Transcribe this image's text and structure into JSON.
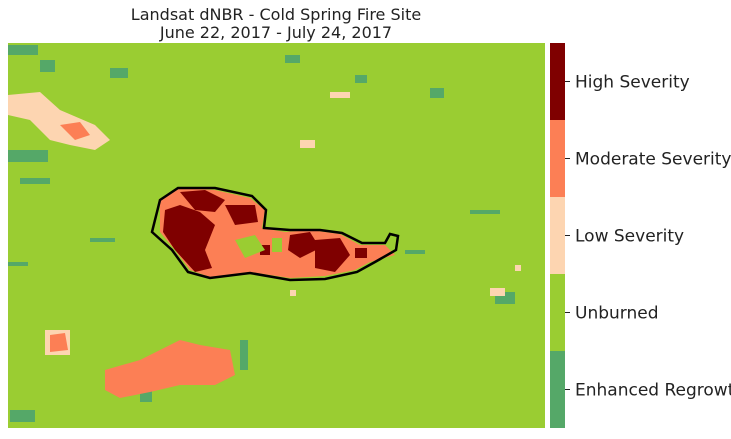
{
  "map": {
    "title": [
      "Landsat dNBR - Cold Spring Fire Site",
      "June 22, 2017 - July 24, 2017"
    ],
    "legend": {
      "classes": [
        {
          "label": "Enhanced Regrowth",
          "color": "#55a868"
        },
        {
          "label": "Unburned",
          "color": "#9acd32"
        },
        {
          "label": "Low Severity",
          "color": "#fdd5b1"
        },
        {
          "label": "Moderate Severity",
          "color": "#fc7f55"
        },
        {
          "label": "High Severity",
          "color": "#7f0000"
        }
      ]
    }
  }
}
